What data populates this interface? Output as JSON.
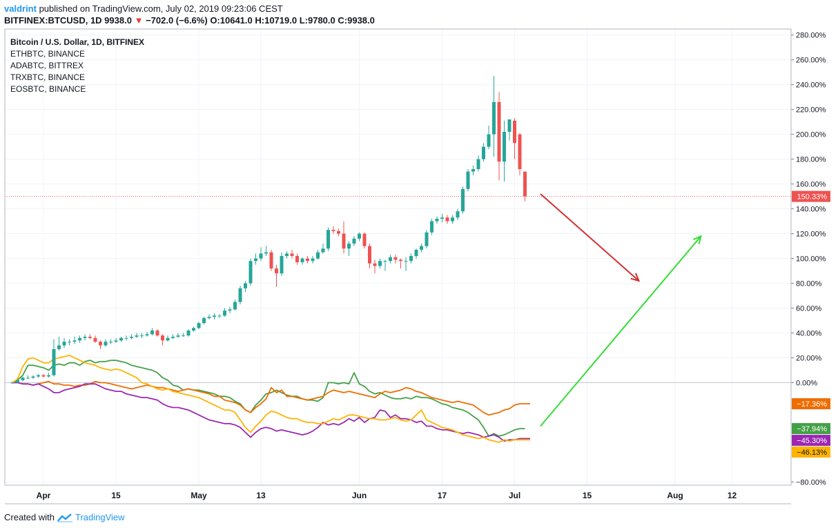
{
  "header": {
    "user": "valdrint",
    "published": " published on TradingView.com, July 02, 2019 09:23:06 CEST",
    "symbol": "BITFINEX:BTCUSD, 1D ",
    "last": "9938.0",
    "change": "−702.0 (−6.6%)",
    "open": "O:10641.0",
    "high": "H:10719.0",
    "low": "L:9780.0",
    "close": "C:9938.0"
  },
  "footer": {
    "created_with": "Created with",
    "brand": "TradingView"
  },
  "colors": {
    "up": "#26a69a",
    "down": "#ef5350",
    "eth": "#43a047",
    "ada": "#ef6c00",
    "trx": "#9c27b0",
    "eos": "#ffb300",
    "bear_arrow": "#d32f2f",
    "bull_arrow": "#33dd33"
  },
  "chart_data": {
    "type": "candlestick",
    "title": "Bitcoin / U.S. Dollar, 1D, BITFINEX",
    "units": "% change",
    "ylim": [
      -80,
      280
    ],
    "y_ticks": [
      {
        "v": 280,
        "label": "280.00%"
      },
      {
        "v": 260,
        "label": "260.00%"
      },
      {
        "v": 240,
        "label": "240.00%"
      },
      {
        "v": 220,
        "label": "220.00%"
      },
      {
        "v": 200,
        "label": "200.00%"
      },
      {
        "v": 180,
        "label": "180.00%"
      },
      {
        "v": 160,
        "label": "160.00%"
      },
      {
        "v": 140,
        "label": "140.00%"
      },
      {
        "v": 120,
        "label": "120.00%"
      },
      {
        "v": 100,
        "label": "100.00%"
      },
      {
        "v": 80,
        "label": "80.00%"
      },
      {
        "v": 60,
        "label": "60.00%"
      },
      {
        "v": 40,
        "label": "40.00%"
      },
      {
        "v": 20,
        "label": "20.00%"
      },
      {
        "v": 0,
        "label": "0.00%"
      },
      {
        "v": -80,
        "label": "−80.00%"
      }
    ],
    "x_ticks": [
      {
        "day": 4,
        "label": "Apr"
      },
      {
        "day": 18,
        "label": "15"
      },
      {
        "day": 34,
        "label": "May"
      },
      {
        "day": 46,
        "label": "13"
      },
      {
        "day": 65,
        "label": "Jun"
      },
      {
        "day": 81,
        "label": "17"
      },
      {
        "day": 95,
        "label": "Jul"
      },
      {
        "day": 109,
        "label": "15"
      },
      {
        "day": 126,
        "label": "Aug"
      },
      {
        "day": 137,
        "label": "12"
      }
    ],
    "start_day": -2,
    "btc_close_pct": [
      0,
      2,
      4,
      4,
      5,
      6,
      5,
      6,
      27,
      30,
      33,
      33,
      34,
      36,
      37,
      36,
      33,
      30,
      33,
      33,
      34,
      36,
      36,
      37,
      38,
      38,
      39,
      42,
      38,
      34,
      36,
      37,
      38,
      38,
      42,
      44,
      48,
      52,
      53,
      54,
      54,
      58,
      59,
      65,
      76,
      80,
      98,
      100,
      104,
      105,
      92,
      88,
      102,
      104,
      102,
      97,
      100,
      98,
      100,
      105,
      108,
      123,
      122,
      120,
      108,
      112,
      116,
      120,
      110,
      96,
      94,
      98,
      98,
      101,
      99,
      98,
      98,
      102,
      107,
      110,
      121,
      130,
      132,
      133,
      130,
      133,
      138,
      156,
      170,
      172,
      180,
      190,
      200,
      226,
      178,
      202,
      212,
      193,
      172,
      150
    ],
    "btc_ohlc": [
      [
        0,
        -1,
        1,
        0
      ],
      [
        0,
        1,
        3,
        2
      ],
      [
        2,
        1,
        5,
        4
      ],
      [
        4,
        3,
        6,
        4
      ],
      [
        4,
        3,
        6,
        5
      ],
      [
        5,
        4,
        7,
        6
      ],
      [
        6,
        4,
        7,
        5
      ],
      [
        5,
        4,
        8,
        6
      ],
      [
        6,
        5,
        35,
        27
      ],
      [
        27,
        26,
        37,
        30
      ],
      [
        30,
        28,
        36,
        33
      ],
      [
        33,
        30,
        35,
        33
      ],
      [
        33,
        31,
        37,
        34
      ],
      [
        34,
        32,
        38,
        36
      ],
      [
        36,
        34,
        39,
        37
      ],
      [
        37,
        35,
        39,
        36
      ],
      [
        36,
        32,
        38,
        33
      ],
      [
        33,
        27,
        34,
        30
      ],
      [
        30,
        29,
        35,
        33
      ],
      [
        33,
        31,
        35,
        33
      ],
      [
        33,
        32,
        36,
        34
      ],
      [
        34,
        33,
        37,
        36
      ],
      [
        36,
        34,
        38,
        36
      ],
      [
        36,
        35,
        39,
        37
      ],
      [
        37,
        36,
        40,
        38
      ],
      [
        38,
        36,
        40,
        38
      ],
      [
        38,
        37,
        41,
        39
      ],
      [
        39,
        38,
        44,
        42
      ],
      [
        42,
        37,
        43,
        38
      ],
      [
        38,
        30,
        39,
        34
      ],
      [
        34,
        33,
        38,
        36
      ],
      [
        36,
        35,
        39,
        37
      ],
      [
        37,
        36,
        40,
        38
      ],
      [
        38,
        37,
        40,
        38
      ],
      [
        38,
        37,
        43,
        42
      ],
      [
        42,
        41,
        45,
        44
      ],
      [
        44,
        43,
        49,
        48
      ],
      [
        48,
        47,
        53,
        52
      ],
      [
        52,
        51,
        55,
        53
      ],
      [
        53,
        51,
        56,
        54
      ],
      [
        54,
        52,
        55,
        54
      ],
      [
        54,
        53,
        60,
        58
      ],
      [
        58,
        56,
        61,
        59
      ],
      [
        59,
        58,
        67,
        65
      ],
      [
        65,
        63,
        78,
        76
      ],
      [
        76,
        73,
        82,
        80
      ],
      [
        80,
        78,
        100,
        98
      ],
      [
        98,
        95,
        104,
        100
      ],
      [
        100,
        98,
        109,
        104
      ],
      [
        104,
        102,
        110,
        105
      ],
      [
        105,
        90,
        107,
        92
      ],
      [
        92,
        77,
        95,
        88
      ],
      [
        88,
        86,
        105,
        102
      ],
      [
        102,
        100,
        106,
        104
      ],
      [
        104,
        100,
        107,
        102
      ],
      [
        102,
        95,
        104,
        97
      ],
      [
        97,
        95,
        101,
        100
      ],
      [
        100,
        96,
        102,
        98
      ],
      [
        98,
        96,
        102,
        100
      ],
      [
        100,
        99,
        107,
        105
      ],
      [
        105,
        104,
        112,
        108
      ],
      [
        108,
        106,
        125,
        123
      ],
      [
        123,
        120,
        126,
        122
      ],
      [
        122,
        118,
        124,
        120
      ],
      [
        120,
        104,
        130,
        108
      ],
      [
        108,
        102,
        114,
        112
      ],
      [
        112,
        110,
        118,
        116
      ],
      [
        116,
        114,
        121,
        120
      ],
      [
        120,
        108,
        121,
        110
      ],
      [
        110,
        92,
        112,
        96
      ],
      [
        96,
        88,
        99,
        94
      ],
      [
        94,
        92,
        100,
        98
      ],
      [
        98,
        90,
        99,
        98
      ],
      [
        98,
        96,
        103,
        101
      ],
      [
        101,
        96,
        103,
        99
      ],
      [
        99,
        92,
        100,
        98
      ],
      [
        98,
        90,
        101,
        98
      ],
      [
        98,
        96,
        104,
        102
      ],
      [
        102,
        100,
        108,
        107
      ],
      [
        107,
        105,
        112,
        110
      ],
      [
        110,
        108,
        123,
        121
      ],
      [
        121,
        119,
        132,
        130
      ],
      [
        130,
        128,
        134,
        132
      ],
      [
        132,
        129,
        136,
        133
      ],
      [
        133,
        128,
        135,
        130
      ],
      [
        130,
        128,
        135,
        133
      ],
      [
        133,
        131,
        140,
        138
      ],
      [
        138,
        136,
        158,
        156
      ],
      [
        156,
        154,
        172,
        170
      ],
      [
        170,
        167,
        175,
        172
      ],
      [
        172,
        170,
        183,
        180
      ],
      [
        180,
        178,
        193,
        190
      ],
      [
        190,
        188,
        207,
        200
      ],
      [
        200,
        182,
        247,
        226
      ],
      [
        226,
        163,
        234,
        178
      ],
      [
        178,
        162,
        211,
        202
      ],
      [
        202,
        195,
        212,
        212
      ],
      [
        211,
        180,
        213,
        193
      ],
      [
        200,
        167,
        201,
        172
      ],
      [
        170,
        146,
        168,
        150
      ]
    ],
    "last_label": "150.33%",
    "series": [
      {
        "name": "ETHBTC, BINANCE",
        "color_key": "eth",
        "last_label": "−37.94%",
        "values": [
          0,
          2,
          6,
          14,
          14,
          13,
          12,
          10,
          14,
          15,
          14,
          16,
          16,
          14,
          17,
          18,
          16,
          17,
          17,
          18,
          18,
          17,
          16,
          14,
          13,
          12,
          11,
          10,
          8,
          4,
          2,
          -2,
          -3,
          -6,
          -5,
          -6,
          -6,
          -7,
          -8,
          -9,
          -11,
          -11,
          -12,
          -15,
          -17,
          -22,
          -24,
          -18,
          -14,
          -9,
          -8,
          -6,
          -8,
          -10,
          -11,
          -11,
          -13,
          -14,
          -14,
          -15,
          -12,
          0,
          0,
          -1,
          0,
          -1,
          8,
          -1,
          -3,
          -7,
          -9,
          -8,
          -10,
          -12,
          -13,
          -13,
          -12,
          -13,
          -11,
          -12,
          -12,
          -13,
          -15,
          -17,
          -18,
          -20,
          -21,
          -22,
          -24,
          -27,
          -30,
          -36,
          -43,
          -41,
          -43,
          -42,
          -40,
          -38,
          -37,
          -37
        ]
      },
      {
        "name": "ADABTC, BITTREX",
        "color_key": "ada",
        "last_label": "−17.36%",
        "values": [
          0,
          0,
          -1,
          -1,
          -2,
          -1,
          0,
          1,
          -1,
          -1,
          -2,
          -2,
          -3,
          -2,
          -2,
          -1,
          1,
          0,
          0,
          -1,
          -2,
          -3,
          -4,
          -5,
          -4,
          -3,
          -2,
          -3,
          -4,
          -4,
          -5,
          -6,
          -7,
          -6,
          -5,
          -6,
          -7,
          -8,
          -9,
          -11,
          -11,
          -14,
          -15,
          -16,
          -18,
          -22,
          -24,
          -20,
          -17,
          -13,
          -4,
          -8,
          -6,
          -11,
          -11,
          -12,
          -13,
          -14,
          -13,
          -12,
          -11,
          -8,
          -6,
          -7,
          -8,
          -7,
          -8,
          -9,
          -10,
          -11,
          -12,
          -9,
          -7,
          -8,
          -7,
          -6,
          -4,
          -5,
          -7,
          -8,
          -10,
          -12,
          -13,
          -14,
          -15,
          -16,
          -15,
          -16,
          -17,
          -18,
          -21,
          -24,
          -26,
          -25,
          -24,
          -22,
          -21,
          -18,
          -17,
          -17,
          -17
        ]
      },
      {
        "name": "TRXBTC, BINANCE",
        "color_key": "trx",
        "last_label": "−45.30%",
        "values": [
          0,
          0,
          -1,
          -1,
          -2,
          -1,
          -3,
          -5,
          -8,
          -8,
          -6,
          -5,
          -4,
          -3,
          -1,
          -1,
          -1,
          -3,
          -5,
          -6,
          -7,
          -7,
          -9,
          -10,
          -11,
          -12,
          -12,
          -13,
          -14,
          -17,
          -19,
          -20,
          -20,
          -21,
          -22,
          -24,
          -26,
          -28,
          -30,
          -31,
          -32,
          -33,
          -33,
          -34,
          -36,
          -40,
          -44,
          -40,
          -37,
          -36,
          -37,
          -39,
          -38,
          -39,
          -40,
          -41,
          -42,
          -41,
          -39,
          -36,
          -32,
          -34,
          -33,
          -34,
          -32,
          -29,
          -31,
          -28,
          -32,
          -29,
          -28,
          -22,
          -23,
          -28,
          -26,
          -29,
          -29,
          -30,
          -32,
          -31,
          -35,
          -35,
          -37,
          -38,
          -38,
          -39,
          -40,
          -41,
          -40,
          -41,
          -42,
          -44,
          -43,
          -42,
          -44,
          -47,
          -46,
          -46,
          -45,
          -45,
          -45
        ]
      },
      {
        "name": "EOSBTC, BINANCE",
        "color_key": "eos",
        "last_label": "−46.13%",
        "values": [
          0,
          3,
          13,
          19,
          20,
          18,
          16,
          16,
          19,
          20,
          21,
          22,
          20,
          18,
          16,
          15,
          14,
          12,
          11,
          10,
          11,
          10,
          8,
          6,
          4,
          0,
          -1,
          -3,
          -5,
          -6,
          -5,
          -7,
          -8,
          -9,
          -10,
          -11,
          -12,
          -14,
          -16,
          -18,
          -20,
          -22,
          -22,
          -24,
          -30,
          -36,
          -40,
          -35,
          -31,
          -26,
          -23,
          -24,
          -26,
          -28,
          -29,
          -29,
          -31,
          -32,
          -32,
          -33,
          -33,
          -31,
          -29,
          -30,
          -28,
          -26,
          -26,
          -27,
          -28,
          -29,
          -29,
          -30,
          -30,
          -29,
          -28,
          -30,
          -31,
          -30,
          -26,
          -22,
          -30,
          -32,
          -34,
          -36,
          -37,
          -38,
          -40,
          -42,
          -43,
          -44,
          -45,
          -44,
          -46,
          -47,
          -48,
          -46,
          -47,
          -46,
          -46,
          -46,
          -46
        ]
      }
    ],
    "annotations": [
      {
        "type": "arrow",
        "color_key": "bear_arrow",
        "from": [
          100,
          152
        ],
        "to": [
          119,
          82
        ]
      },
      {
        "type": "arrow",
        "color_key": "bull_arrow",
        "from": [
          100,
          -35
        ],
        "to": [
          131,
          118
        ]
      }
    ]
  }
}
